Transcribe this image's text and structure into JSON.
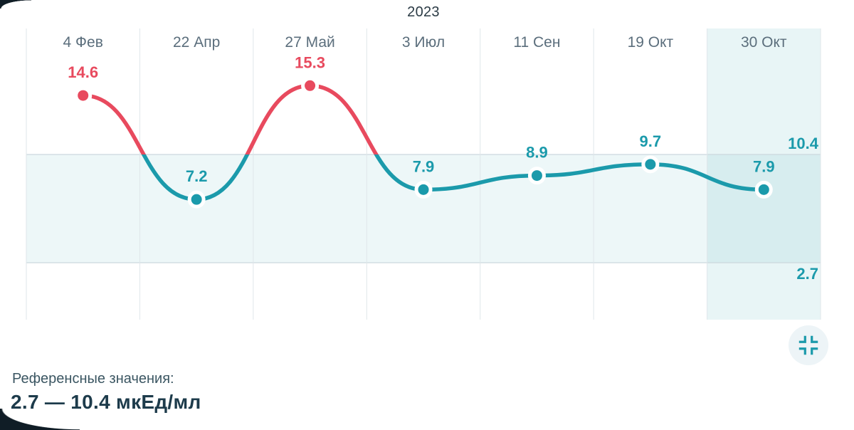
{
  "chart_data": {
    "type": "line",
    "title": "2023",
    "categories": [
      "4 Фев",
      "22 Апр",
      "27 Май",
      "3 Июл",
      "11 Сен",
      "19 Окт",
      "30 Окт"
    ],
    "values": [
      14.6,
      7.2,
      15.3,
      7.9,
      8.9,
      9.7,
      7.9
    ],
    "unit": "мкЕд/мл",
    "reference_range": {
      "low": 2.7,
      "high": 10.4
    },
    "ref_high_label": "10.4",
    "ref_low_label": "2.7",
    "selected_index": 6,
    "ylim": [
      -1.4,
      19.2
    ],
    "grid": "vertical-columns",
    "legend": "none",
    "colors": {
      "in_range": "#1b9aab",
      "out_of_range": "#e84a5e",
      "band_fill": "rgba(27,154,171,0.08)",
      "highlight_fill": "rgba(27,154,171,0.10)",
      "gridline": "#dfe6ea",
      "reference_line": "#ccd8dd",
      "date_label": "#5b6e7c"
    }
  },
  "footer": {
    "reference_label": "Референсные значения:",
    "reference_value": "2.7 — 10.4 мкЕд/мл"
  },
  "controls": {
    "collapse_icon": "collapse-icon"
  }
}
